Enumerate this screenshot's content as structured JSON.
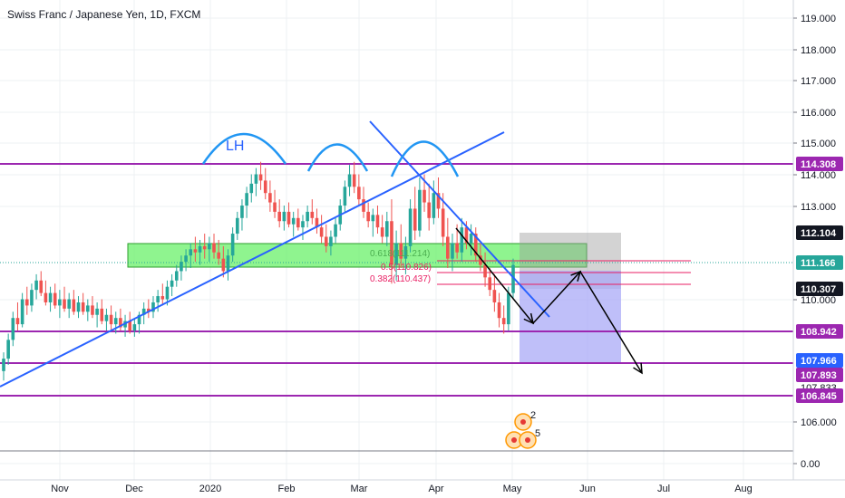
{
  "chart_data": {
    "type": "candlestick",
    "title": "Swiss Franc / Japanese Yen, 1D, FXCM",
    "y_ticks": [
      "119.000",
      "118.000",
      "117.000",
      "116.000",
      "115.000",
      "114.000",
      "113.000",
      "110.000",
      "106.000",
      "0.00"
    ],
    "x_ticks": [
      "Nov",
      "Dec",
      "2020",
      "Feb",
      "Mar",
      "Apr",
      "May",
      "Jun",
      "Jul",
      "Aug"
    ],
    "price_labels": [
      {
        "text": "114.308",
        "kind": "purple-badge"
      },
      {
        "text": "112.104",
        "kind": "dark-badge"
      },
      {
        "text": "111.166",
        "kind": "teal-badge"
      },
      {
        "text": "110.307",
        "kind": "dark-badge"
      },
      {
        "text": "108.942",
        "kind": "purple-badge"
      },
      {
        "text": "107.966",
        "kind": "blue-badge"
      },
      {
        "text": "107.893",
        "kind": "purple-badge"
      },
      {
        "text": "106.845",
        "kind": "purple-badge"
      }
    ],
    "hidden_tick": "107.833",
    "fib_labels": [
      {
        "text": "0.618(111.214)",
        "color": "#4caf50"
      },
      {
        "text": "0.5(110.826)",
        "color": "#e91e63"
      },
      {
        "text": "0.382(110.437)",
        "color": "#e91e63"
      }
    ],
    "annotation": "LH",
    "event_numbers": [
      "2",
      "5"
    ],
    "horizontal_levels": [
      114.308,
      108.942,
      107.893,
      106.845
    ],
    "colors": {
      "up": "#26a69a",
      "down": "#ef5350",
      "level": "#9c27b0",
      "trend": "#2962ff",
      "zone": "#69f069",
      "fib": "#e91e63"
    },
    "candles": [
      {
        "o": 107.7,
        "h": 108.3,
        "l": 107.4,
        "c": 108.1
      },
      {
        "o": 108.1,
        "h": 108.9,
        "l": 107.9,
        "c": 108.7
      },
      {
        "o": 108.7,
        "h": 109.6,
        "l": 108.5,
        "c": 109.4
      },
      {
        "o": 109.4,
        "h": 109.9,
        "l": 109.0,
        "c": 109.2
      },
      {
        "o": 109.2,
        "h": 110.2,
        "l": 109.1,
        "c": 110.0
      },
      {
        "o": 110.0,
        "h": 110.4,
        "l": 109.5,
        "c": 109.8
      },
      {
        "o": 109.8,
        "h": 110.5,
        "l": 109.6,
        "c": 110.3
      },
      {
        "o": 110.3,
        "h": 110.8,
        "l": 110.0,
        "c": 110.6
      },
      {
        "o": 110.6,
        "h": 110.9,
        "l": 110.1,
        "c": 110.2
      },
      {
        "o": 110.2,
        "h": 110.6,
        "l": 109.8,
        "c": 109.9
      },
      {
        "o": 109.9,
        "h": 110.4,
        "l": 109.6,
        "c": 110.2
      },
      {
        "o": 110.2,
        "h": 110.5,
        "l": 109.7,
        "c": 109.8
      },
      {
        "o": 109.8,
        "h": 110.3,
        "l": 109.4,
        "c": 110.0
      },
      {
        "o": 110.0,
        "h": 110.4,
        "l": 109.6,
        "c": 109.7
      },
      {
        "o": 109.7,
        "h": 110.2,
        "l": 109.4,
        "c": 110.0
      },
      {
        "o": 110.0,
        "h": 110.3,
        "l": 109.5,
        "c": 109.6
      },
      {
        "o": 109.6,
        "h": 110.1,
        "l": 109.4,
        "c": 109.9
      },
      {
        "o": 109.9,
        "h": 110.2,
        "l": 109.5,
        "c": 109.6
      },
      {
        "o": 109.6,
        "h": 110.0,
        "l": 109.3,
        "c": 109.8
      },
      {
        "o": 109.8,
        "h": 110.1,
        "l": 109.4,
        "c": 109.5
      },
      {
        "o": 109.5,
        "h": 109.9,
        "l": 109.1,
        "c": 109.7
      },
      {
        "o": 109.7,
        "h": 110.0,
        "l": 109.2,
        "c": 109.3
      },
      {
        "o": 109.3,
        "h": 109.7,
        "l": 109.0,
        "c": 109.5
      },
      {
        "o": 109.5,
        "h": 109.8,
        "l": 109.0,
        "c": 109.2
      },
      {
        "o": 109.2,
        "h": 109.6,
        "l": 108.9,
        "c": 109.4
      },
      {
        "o": 109.4,
        "h": 109.7,
        "l": 109.0,
        "c": 109.1
      },
      {
        "o": 109.1,
        "h": 109.5,
        "l": 108.8,
        "c": 109.3
      },
      {
        "o": 109.3,
        "h": 109.6,
        "l": 108.9,
        "c": 109.0
      },
      {
        "o": 109.0,
        "h": 109.4,
        "l": 108.8,
        "c": 109.2
      },
      {
        "o": 109.2,
        "h": 109.6,
        "l": 108.9,
        "c": 109.5
      },
      {
        "o": 109.5,
        "h": 109.9,
        "l": 109.2,
        "c": 109.7
      },
      {
        "o": 109.7,
        "h": 110.0,
        "l": 109.4,
        "c": 109.6
      },
      {
        "o": 109.6,
        "h": 110.1,
        "l": 109.4,
        "c": 109.9
      },
      {
        "o": 109.9,
        "h": 110.3,
        "l": 109.6,
        "c": 110.1
      },
      {
        "o": 110.1,
        "h": 110.5,
        "l": 109.8,
        "c": 110.0
      },
      {
        "o": 110.0,
        "h": 110.6,
        "l": 109.8,
        "c": 110.4
      },
      {
        "o": 110.4,
        "h": 110.8,
        "l": 110.1,
        "c": 110.6
      },
      {
        "o": 110.6,
        "h": 111.1,
        "l": 110.4,
        "c": 110.9
      },
      {
        "o": 110.9,
        "h": 111.4,
        "l": 110.6,
        "c": 111.2
      },
      {
        "o": 111.2,
        "h": 111.6,
        "l": 110.9,
        "c": 111.4
      },
      {
        "o": 111.4,
        "h": 111.8,
        "l": 111.0,
        "c": 111.6
      },
      {
        "o": 111.6,
        "h": 112.0,
        "l": 111.2,
        "c": 111.5
      },
      {
        "o": 111.5,
        "h": 111.9,
        "l": 111.1,
        "c": 111.7
      },
      {
        "o": 111.7,
        "h": 112.1,
        "l": 111.3,
        "c": 111.6
      },
      {
        "o": 111.6,
        "h": 112.0,
        "l": 111.2,
        "c": 111.8
      },
      {
        "o": 111.8,
        "h": 112.1,
        "l": 111.3,
        "c": 111.5
      },
      {
        "o": 111.5,
        "h": 111.9,
        "l": 111.1,
        "c": 111.3
      },
      {
        "o": 111.3,
        "h": 111.7,
        "l": 110.7,
        "c": 110.9
      },
      {
        "o": 110.9,
        "h": 111.6,
        "l": 110.6,
        "c": 111.4
      },
      {
        "o": 111.4,
        "h": 112.3,
        "l": 111.2,
        "c": 112.1
      },
      {
        "o": 112.1,
        "h": 112.8,
        "l": 111.9,
        "c": 112.6
      },
      {
        "o": 112.6,
        "h": 113.2,
        "l": 112.2,
        "c": 113.0
      },
      {
        "o": 113.0,
        "h": 113.6,
        "l": 112.6,
        "c": 113.4
      },
      {
        "o": 113.4,
        "h": 114.0,
        "l": 113.1,
        "c": 113.7
      },
      {
        "o": 113.7,
        "h": 114.2,
        "l": 113.3,
        "c": 114.0
      },
      {
        "o": 114.0,
        "h": 114.4,
        "l": 113.5,
        "c": 113.8
      },
      {
        "o": 113.8,
        "h": 114.2,
        "l": 113.2,
        "c": 113.4
      },
      {
        "o": 113.4,
        "h": 113.8,
        "l": 112.8,
        "c": 113.1
      },
      {
        "o": 113.1,
        "h": 113.5,
        "l": 112.6,
        "c": 112.8
      },
      {
        "o": 112.8,
        "h": 113.2,
        "l": 112.3,
        "c": 112.5
      },
      {
        "o": 112.5,
        "h": 113.0,
        "l": 112.2,
        "c": 112.8
      },
      {
        "o": 112.8,
        "h": 113.1,
        "l": 112.3,
        "c": 112.4
      },
      {
        "o": 112.4,
        "h": 112.8,
        "l": 112.0,
        "c": 112.6
      },
      {
        "o": 112.6,
        "h": 112.9,
        "l": 112.2,
        "c": 112.3
      },
      {
        "o": 112.3,
        "h": 112.7,
        "l": 111.9,
        "c": 112.5
      },
      {
        "o": 112.5,
        "h": 113.0,
        "l": 112.3,
        "c": 112.8
      },
      {
        "o": 112.8,
        "h": 113.2,
        "l": 112.4,
        "c": 112.6
      },
      {
        "o": 112.6,
        "h": 112.9,
        "l": 112.1,
        "c": 112.3
      },
      {
        "o": 112.3,
        "h": 112.7,
        "l": 111.8,
        "c": 112.0
      },
      {
        "o": 112.0,
        "h": 112.4,
        "l": 111.5,
        "c": 111.7
      },
      {
        "o": 111.7,
        "h": 112.2,
        "l": 111.4,
        "c": 112.0
      },
      {
        "o": 112.0,
        "h": 112.6,
        "l": 111.8,
        "c": 112.4
      },
      {
        "o": 112.4,
        "h": 113.2,
        "l": 112.2,
        "c": 113.0
      },
      {
        "o": 113.0,
        "h": 113.8,
        "l": 112.8,
        "c": 113.6
      },
      {
        "o": 113.6,
        "h": 114.3,
        "l": 113.3,
        "c": 114.0
      },
      {
        "o": 114.0,
        "h": 114.4,
        "l": 113.4,
        "c": 113.6
      },
      {
        "o": 113.6,
        "h": 114.0,
        "l": 113.0,
        "c": 113.2
      },
      {
        "o": 113.2,
        "h": 113.6,
        "l": 112.6,
        "c": 112.8
      },
      {
        "o": 112.8,
        "h": 113.1,
        "l": 112.3,
        "c": 112.5
      },
      {
        "o": 112.5,
        "h": 112.9,
        "l": 112.0,
        "c": 112.7
      },
      {
        "o": 112.7,
        "h": 113.0,
        "l": 112.1,
        "c": 112.3
      },
      {
        "o": 112.3,
        "h": 112.7,
        "l": 111.8,
        "c": 112.0
      },
      {
        "o": 112.0,
        "h": 112.8,
        "l": 111.7,
        "c": 112.5
      },
      {
        "o": 112.5,
        "h": 113.2,
        "l": 110.5,
        "c": 111.1
      },
      {
        "o": 111.1,
        "h": 112.2,
        "l": 110.6,
        "c": 111.8
      },
      {
        "o": 111.8,
        "h": 112.4,
        "l": 111.0,
        "c": 111.3
      },
      {
        "o": 111.3,
        "h": 112.0,
        "l": 110.8,
        "c": 111.7
      },
      {
        "o": 111.7,
        "h": 113.2,
        "l": 111.5,
        "c": 112.9
      },
      {
        "o": 112.9,
        "h": 113.6,
        "l": 111.9,
        "c": 112.2
      },
      {
        "o": 112.2,
        "h": 113.9,
        "l": 112.0,
        "c": 113.5
      },
      {
        "o": 113.5,
        "h": 114.0,
        "l": 112.8,
        "c": 113.1
      },
      {
        "o": 113.1,
        "h": 113.7,
        "l": 112.2,
        "c": 112.6
      },
      {
        "o": 112.6,
        "h": 113.8,
        "l": 112.4,
        "c": 113.4
      },
      {
        "o": 113.4,
        "h": 113.9,
        "l": 112.6,
        "c": 112.9
      },
      {
        "o": 112.9,
        "h": 113.4,
        "l": 111.7,
        "c": 112.0
      },
      {
        "o": 112.0,
        "h": 112.6,
        "l": 111.0,
        "c": 111.3
      },
      {
        "o": 111.3,
        "h": 112.1,
        "l": 110.9,
        "c": 111.8
      },
      {
        "o": 111.8,
        "h": 112.4,
        "l": 111.3,
        "c": 111.5
      },
      {
        "o": 111.5,
        "h": 112.6,
        "l": 111.2,
        "c": 112.3
      },
      {
        "o": 112.3,
        "h": 112.5,
        "l": 111.6,
        "c": 111.8
      },
      {
        "o": 111.8,
        "h": 112.4,
        "l": 111.4,
        "c": 112.1
      },
      {
        "o": 112.1,
        "h": 112.3,
        "l": 111.2,
        "c": 111.4
      },
      {
        "o": 111.4,
        "h": 111.8,
        "l": 110.9,
        "c": 111.1
      },
      {
        "o": 111.1,
        "h": 111.5,
        "l": 110.4,
        "c": 110.7
      },
      {
        "o": 110.7,
        "h": 111.0,
        "l": 110.1,
        "c": 110.3
      },
      {
        "o": 110.3,
        "h": 110.8,
        "l": 109.6,
        "c": 109.9
      },
      {
        "o": 109.9,
        "h": 110.2,
        "l": 109.1,
        "c": 109.4
      },
      {
        "o": 109.4,
        "h": 109.8,
        "l": 108.9,
        "c": 109.2
      },
      {
        "o": 109.2,
        "h": 110.4,
        "l": 109.0,
        "c": 110.2
      },
      {
        "o": 110.2,
        "h": 111.3,
        "l": 110.0,
        "c": 111.1
      }
    ]
  }
}
